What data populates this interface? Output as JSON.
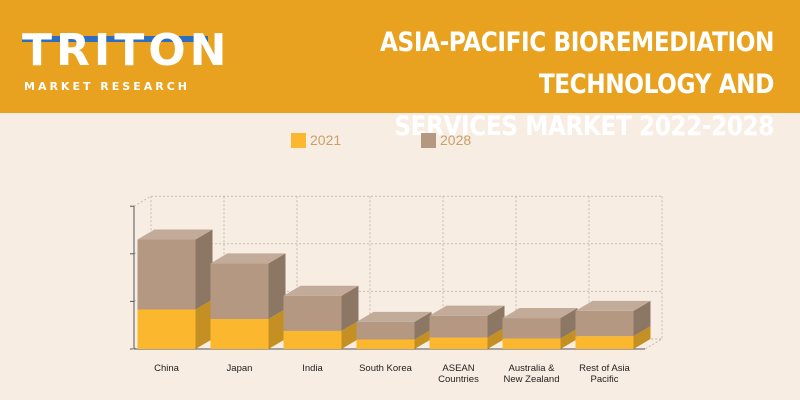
{
  "header": {
    "logo_word": "TRITON",
    "logo_sub": "MARKET RESEARCH",
    "title_line1": "ASIA-PACIFIC BIOREMEDIATION TECHNOLOGY AND",
    "title_line2": "SERVICES MARKET 2022-2028"
  },
  "colors": {
    "banner": "#e8a21f",
    "series_2021": "#fbb72d",
    "series_2028": "#b49882",
    "logo_accent": "#2f6dbf"
  },
  "chart_data": {
    "type": "bar",
    "stacked": true,
    "three_d": true,
    "categories": [
      "China",
      "Japan",
      "India",
      "South Korea",
      "ASEAN Countries",
      "Australia & New Zealand",
      "Rest of Asia Pacific"
    ],
    "series": [
      {
        "name": "2021",
        "values": [
          0.83,
          0.63,
          0.38,
          0.2,
          0.24,
          0.22,
          0.27
        ]
      },
      {
        "name": "2028",
        "values": [
          2.3,
          1.8,
          1.12,
          0.57,
          0.7,
          0.65,
          0.8
        ]
      }
    ],
    "ylim": [
      0,
      3
    ],
    "y_ticks": [
      0,
      1,
      2,
      3
    ],
    "y_tick_labels_shown": false,
    "grid": true,
    "legend_placement": "top"
  }
}
